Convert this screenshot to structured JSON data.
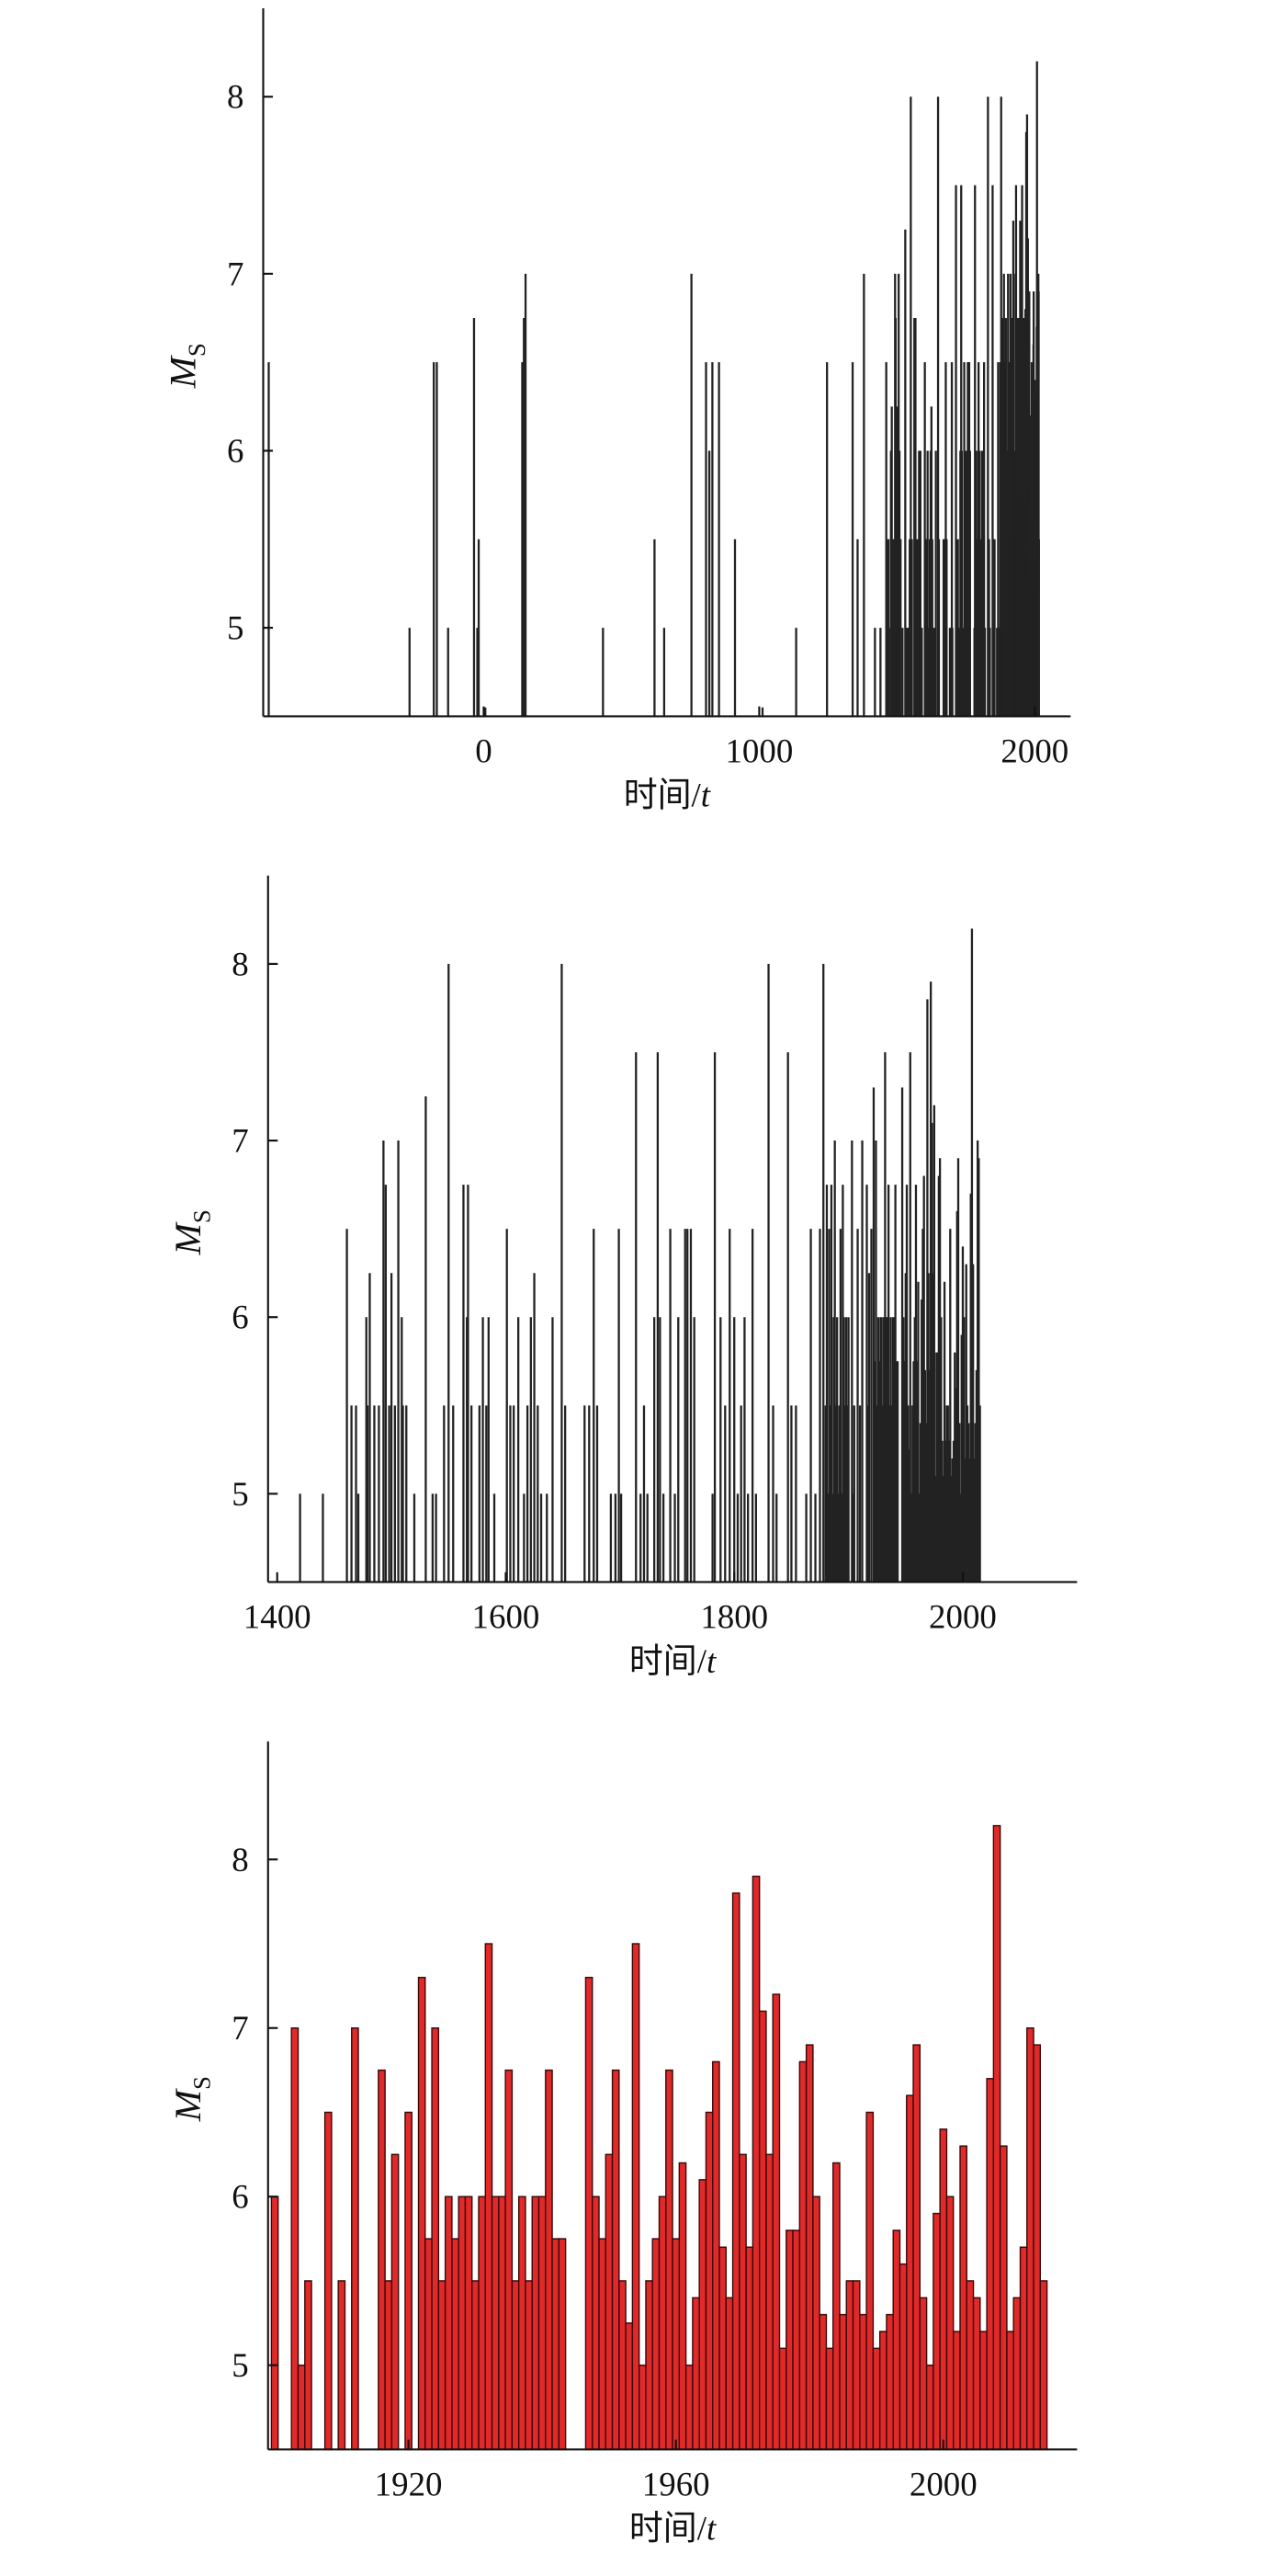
{
  "chart_data": [
    {
      "type": "stem",
      "color": "#222222",
      "x_label": "时间/",
      "x_label_var": "t",
      "y_label": "M",
      "y_label_sub": "S",
      "xlim": [
        -800,
        2130
      ],
      "ylim": [
        4.5,
        8.5
      ],
      "xticks": [
        0,
        1000,
        2000
      ],
      "yticks": [
        5,
        6,
        7,
        8
      ],
      "x": [
        -780,
        -269,
        -181,
        -170,
        -129,
        -35,
        -23,
        -18,
        6,
        140,
        146,
        152,
        433,
        620,
        655,
        754,
        807,
        819,
        830,
        854,
        912,
        1012,
        1134,
        1246,
        1339,
        1357,
        1380,
        1420,
        1440,
        1461,
        1465,
        1469,
        1471,
        1478,
        1479,
        1481,
        1485,
        1489,
        1493,
        1495,
        1498,
        1500,
        1503,
        1506,
        1509,
        1510,
        1513,
        1520,
        1530,
        1536,
        1539,
        1546,
        1550,
        1554,
        1563,
        1566,
        1567,
        1570,
        1577,
        1580,
        1583,
        1585,
        1590,
        1601,
        1604,
        1607,
        1611,
        1616,
        1619,
        1622,
        1625,
        1628,
        1631,
        1636,
        1641,
        1649,
        1652,
        1669,
        1673,
        1677,
        1680,
        1692,
        1696,
        1699,
        1701,
        1714,
        1718,
        1721,
        1724,
        1730,
        1733,
        1735,
        1738,
        1744,
        1748,
        1751,
        1757,
        1759,
        1762,
        1765,
        1781,
        1783,
        1788,
        1792,
        1796,
        1800,
        1803,
        1806,
        1809,
        1812,
        1816,
        1819,
        1830,
        1834,
        1837,
        1847,
        1850,
        1854,
        1863,
        1867,
        1871,
        1875,
        1878,
        1880,
        1881,
        1882,
        1883,
        1884,
        1885,
        1886,
        1887,
        1888,
        1889,
        1890,
        1891,
        1892,
        1893,
        1894,
        1895,
        1896,
        1897,
        1898,
        1899,
        1900,
        1903,
        1904,
        1905,
        1908,
        1910,
        1912,
        1916,
        1917,
        1918,
        1920,
        1922,
        1923,
        1924,
        1925,
        1926,
        1927,
        1928,
        1929,
        1930,
        1931,
        1932,
        1933,
        1934,
        1935,
        1936,
        1937,
        1938,
        1939,
        1940,
        1941,
        1942,
        1943,
        1947,
        1948,
        1949,
        1950,
        1951,
        1952,
        1953,
        1954,
        1955,
        1956,
        1957,
        1958,
        1959,
        1960,
        1961,
        1962,
        1963,
        1964,
        1965,
        1966,
        1967,
        1968,
        1969,
        1970,
        1971,
        1972,
        1973,
        1974,
        1975,
        1976,
        1977,
        1978,
        1979,
        1980,
        1981,
        1982,
        1983,
        1984,
        1985,
        1986,
        1987,
        1988,
        1989,
        1990,
        1991,
        1992,
        1993,
        1994,
        1995,
        1996,
        1997,
        1998,
        1999,
        2000,
        2001,
        2002,
        2003,
        2004,
        2005,
        2006,
        2007,
        2008,
        2009,
        2010,
        2011,
        2012,
        2013,
        2014,
        2015
      ],
      "values": [
        6.5,
        5.0,
        6.5,
        6.5,
        5.0,
        6.75,
        5.0,
        5.5,
        4.55,
        6.5,
        6.75,
        7.0,
        5.0,
        5.5,
        5.0,
        7.0,
        6.5,
        6.0,
        6.5,
        6.5,
        5.5,
        4.55,
        5.0,
        6.5,
        6.5,
        5.5,
        7.0,
        5.0,
        5.0,
        6.5,
        5.5,
        5.5,
        5.0,
        6.0,
        5.5,
        6.25,
        5.5,
        5.5,
        7.0,
        6.75,
        5.5,
        6.25,
        5.5,
        7.0,
        6.0,
        5.5,
        5.5,
        5.0,
        7.25,
        5.0,
        5.0,
        5.5,
        8.0,
        5.5,
        6.75,
        6.0,
        6.75,
        5.5,
        5.5,
        6.0,
        5.5,
        6.0,
        5.0,
        6.5,
        5.5,
        5.5,
        6.0,
        5.0,
        5.5,
        6.0,
        6.25,
        5.5,
        5.0,
        5.0,
        6.0,
        8.0,
        5.5,
        5.5,
        5.5,
        6.5,
        5.5,
        5.0,
        5.0,
        6.5,
        5.0,
        7.5,
        5.0,
        5.5,
        5.0,
        6.0,
        7.5,
        6.0,
        5.0,
        6.5,
        5.0,
        6.0,
        6.5,
        6.5,
        6.5,
        6.0,
        5.0,
        7.5,
        6.0,
        5.5,
        6.5,
        6.0,
        5.0,
        5.5,
        6.0,
        5.0,
        6.5,
        5.0,
        8.0,
        5.5,
        5.0,
        7.5,
        5.5,
        5.5,
        5.0,
        6.5,
        5.0,
        6.5,
        8.0,
        5.5,
        6.75,
        5.0,
        6.5,
        5.5,
        6.75,
        5.0,
        6.0,
        7.0,
        5.5,
        6.0,
        5.0,
        5.5,
        6.5,
        5.0,
        6.75,
        6.0,
        5.5,
        6.0,
        5.5,
        6.0,
        7.0,
        5.0,
        5.5,
        6.5,
        5.5,
        7.0,
        6.75,
        5.5,
        6.25,
        6.5,
        7.3,
        5.75,
        7.0,
        5.5,
        6.0,
        5.75,
        6.0,
        6.0,
        5.5,
        6.0,
        7.5,
        6.0,
        6.0,
        6.75,
        5.5,
        6.0,
        5.5,
        6.0,
        6.0,
        6.75,
        5.75,
        5.75,
        7.3,
        6.0,
        5.75,
        6.25,
        6.75,
        5.5,
        5.25,
        7.5,
        5.0,
        5.5,
        5.75,
        6.0,
        6.75,
        5.75,
        6.2,
        5.0,
        5.4,
        6.1,
        6.5,
        6.8,
        5.7,
        5.4,
        7.8,
        6.25,
        5.7,
        7.9,
        7.1,
        6.25,
        7.2,
        5.1,
        5.8,
        5.8,
        6.8,
        6.9,
        6.0,
        5.3,
        5.1,
        6.2,
        5.3,
        5.5,
        5.5,
        5.3,
        6.5,
        5.1,
        5.2,
        5.3,
        5.8,
        5.6,
        6.6,
        6.9,
        5.4,
        5.0,
        5.9,
        6.4,
        6.0,
        5.2,
        6.3,
        5.5,
        5.4,
        5.2,
        6.7,
        8.2,
        6.3,
        5.2,
        5.4,
        5.7,
        7.0,
        6.9,
        5.5
      ]
    },
    {
      "type": "stem",
      "color": "#222222",
      "x_label": "时间/",
      "x_label_var": "t",
      "y_label": "M",
      "y_label_sub": "S",
      "xlim": [
        1392,
        2100
      ],
      "ylim": [
        4.5,
        8.5
      ],
      "xticks": [
        1400,
        1600,
        1800,
        2000
      ],
      "yticks": [
        5,
        6,
        7,
        8
      ],
      "x": [
        1420,
        1440,
        1461,
        1465,
        1469,
        1471,
        1478,
        1479,
        1481,
        1485,
        1489,
        1493,
        1495,
        1498,
        1500,
        1503,
        1506,
        1509,
        1510,
        1513,
        1520,
        1530,
        1536,
        1539,
        1546,
        1550,
        1554,
        1563,
        1566,
        1567,
        1570,
        1577,
        1580,
        1583,
        1585,
        1590,
        1601,
        1604,
        1607,
        1611,
        1616,
        1619,
        1622,
        1625,
        1628,
        1631,
        1636,
        1641,
        1649,
        1652,
        1669,
        1673,
        1677,
        1680,
        1692,
        1696,
        1699,
        1701,
        1714,
        1718,
        1721,
        1724,
        1730,
        1733,
        1735,
        1738,
        1744,
        1748,
        1751,
        1757,
        1759,
        1762,
        1765,
        1781,
        1783,
        1788,
        1792,
        1796,
        1800,
        1803,
        1806,
        1809,
        1812,
        1816,
        1819,
        1830,
        1834,
        1837,
        1847,
        1850,
        1854,
        1863,
        1867,
        1871,
        1875,
        1878,
        1880,
        1881,
        1882,
        1883,
        1884,
        1885,
        1886,
        1887,
        1888,
        1889,
        1890,
        1891,
        1892,
        1893,
        1894,
        1895,
        1896,
        1897,
        1898,
        1899,
        1900,
        1903,
        1904,
        1905,
        1908,
        1910,
        1912,
        1916,
        1917,
        1918,
        1920,
        1922,
        1923,
        1924,
        1925,
        1926,
        1927,
        1928,
        1929,
        1930,
        1931,
        1932,
        1933,
        1934,
        1935,
        1936,
        1937,
        1938,
        1939,
        1940,
        1941,
        1942,
        1943,
        1947,
        1948,
        1949,
        1950,
        1951,
        1952,
        1953,
        1954,
        1955,
        1956,
        1957,
        1958,
        1959,
        1960,
        1961,
        1962,
        1963,
        1964,
        1965,
        1966,
        1967,
        1968,
        1969,
        1970,
        1971,
        1972,
        1973,
        1974,
        1975,
        1976,
        1977,
        1978,
        1979,
        1980,
        1981,
        1982,
        1983,
        1984,
        1985,
        1986,
        1987,
        1988,
        1989,
        1990,
        1991,
        1992,
        1993,
        1994,
        1995,
        1996,
        1997,
        1998,
        1999,
        2000,
        2001,
        2002,
        2003,
        2004,
        2005,
        2006,
        2007,
        2008,
        2009,
        2010,
        2011,
        2012,
        2013,
        2014,
        2015
      ],
      "values": [
        5.0,
        5.0,
        6.5,
        5.5,
        5.5,
        5.0,
        6.0,
        5.5,
        6.25,
        5.5,
        5.5,
        7.0,
        6.75,
        5.5,
        6.25,
        5.5,
        7.0,
        6.0,
        5.5,
        5.5,
        5.0,
        7.25,
        5.0,
        5.0,
        5.5,
        8.0,
        5.5,
        6.75,
        6.0,
        6.75,
        5.5,
        5.5,
        6.0,
        5.5,
        6.0,
        5.0,
        6.5,
        5.5,
        5.5,
        6.0,
        5.0,
        5.5,
        6.0,
        6.25,
        5.5,
        5.0,
        5.0,
        6.0,
        8.0,
        5.5,
        5.5,
        5.5,
        6.5,
        5.5,
        5.0,
        5.0,
        6.5,
        5.0,
        7.5,
        5.0,
        5.5,
        5.0,
        6.0,
        7.5,
        6.0,
        5.0,
        6.5,
        5.0,
        6.0,
        6.5,
        6.5,
        6.5,
        6.0,
        5.0,
        7.5,
        6.0,
        5.5,
        6.5,
        6.0,
        5.0,
        5.5,
        6.0,
        5.0,
        6.5,
        5.0,
        8.0,
        5.5,
        5.0,
        7.5,
        5.5,
        5.5,
        5.0,
        6.5,
        5.0,
        6.5,
        8.0,
        5.5,
        6.75,
        5.0,
        6.5,
        5.5,
        6.75,
        5.0,
        6.0,
        7.0,
        5.5,
        6.0,
        5.0,
        5.5,
        6.5,
        5.0,
        6.75,
        6.0,
        5.5,
        6.0,
        5.5,
        6.0,
        7.0,
        5.0,
        5.5,
        6.5,
        5.5,
        7.0,
        6.75,
        5.5,
        6.25,
        6.5,
        7.3,
        5.75,
        7.0,
        5.5,
        6.0,
        5.75,
        6.0,
        6.0,
        5.5,
        6.0,
        7.5,
        6.0,
        6.0,
        6.75,
        5.5,
        6.0,
        5.5,
        6.0,
        6.0,
        6.75,
        5.75,
        5.75,
        7.3,
        6.0,
        5.75,
        6.25,
        6.75,
        5.5,
        5.25,
        7.5,
        5.0,
        5.5,
        5.75,
        6.0,
        6.75,
        5.75,
        6.2,
        5.0,
        5.4,
        6.1,
        6.5,
        6.8,
        5.7,
        5.4,
        7.8,
        6.25,
        5.7,
        7.9,
        7.1,
        6.25,
        7.2,
        5.1,
        5.8,
        5.8,
        6.8,
        6.9,
        6.0,
        5.3,
        5.1,
        6.2,
        5.3,
        5.5,
        5.5,
        5.3,
        6.5,
        5.1,
        5.2,
        5.3,
        5.8,
        5.6,
        6.6,
        6.9,
        5.4,
        5.0,
        5.9,
        6.4,
        6.0,
        5.2,
        6.3,
        5.5,
        5.4,
        5.2,
        6.7,
        8.2,
        6.3,
        5.2,
        5.4,
        5.7,
        7.0,
        6.9,
        5.5
      ]
    },
    {
      "type": "bar",
      "color": "#e02a2a",
      "x_label": "时间/",
      "x_label_var": "t",
      "y_label": "M",
      "y_label_sub": "S",
      "xlim": [
        1899,
        2020
      ],
      "ylim": [
        4.5,
        8.7
      ],
      "xticks": [
        1920,
        1960,
        2000
      ],
      "yticks": [
        5,
        6,
        7,
        8
      ],
      "x": [
        1900,
        1903,
        1904,
        1905,
        1908,
        1910,
        1912,
        1916,
        1917,
        1918,
        1920,
        1922,
        1923,
        1924,
        1925,
        1926,
        1927,
        1928,
        1929,
        1930,
        1931,
        1932,
        1933,
        1934,
        1935,
        1936,
        1937,
        1938,
        1939,
        1940,
        1941,
        1942,
        1943,
        1947,
        1948,
        1949,
        1950,
        1951,
        1952,
        1953,
        1954,
        1955,
        1956,
        1957,
        1958,
        1959,
        1960,
        1961,
        1962,
        1963,
        1964,
        1965,
        1966,
        1967,
        1968,
        1969,
        1970,
        1971,
        1972,
        1973,
        1974,
        1975,
        1976,
        1977,
        1978,
        1979,
        1980,
        1981,
        1982,
        1983,
        1984,
        1985,
        1986,
        1987,
        1988,
        1989,
        1990,
        1991,
        1992,
        1993,
        1994,
        1995,
        1996,
        1997,
        1998,
        1999,
        2000,
        2001,
        2002,
        2003,
        2004,
        2005,
        2006,
        2007,
        2008,
        2009,
        2010,
        2011,
        2012,
        2013,
        2014,
        2015
      ],
      "values": [
        6.0,
        7.0,
        5.0,
        5.5,
        6.5,
        5.5,
        7.0,
        6.75,
        5.5,
        6.25,
        6.5,
        7.3,
        5.75,
        7.0,
        5.5,
        6.0,
        5.75,
        6.0,
        6.0,
        5.5,
        6.0,
        7.5,
        6.0,
        6.0,
        6.75,
        5.5,
        6.0,
        5.5,
        6.0,
        6.0,
        6.75,
        5.75,
        5.75,
        7.3,
        6.0,
        5.75,
        6.25,
        6.75,
        5.5,
        5.25,
        7.5,
        5.0,
        5.5,
        5.75,
        6.0,
        6.75,
        5.75,
        6.2,
        5.0,
        5.4,
        6.1,
        6.5,
        6.8,
        5.7,
        5.4,
        7.8,
        6.25,
        5.7,
        7.9,
        7.1,
        6.25,
        7.2,
        5.1,
        5.8,
        5.8,
        6.8,
        6.9,
        6.0,
        5.3,
        5.1,
        6.2,
        5.3,
        5.5,
        5.5,
        5.3,
        6.5,
        5.1,
        5.2,
        5.3,
        5.8,
        5.6,
        6.6,
        6.9,
        5.4,
        5.0,
        5.9,
        6.4,
        6.0,
        5.2,
        6.3,
        5.5,
        5.4,
        5.2,
        6.7,
        8.2,
        6.3,
        5.2,
        5.4,
        5.7,
        7.0,
        6.9,
        5.5
      ]
    }
  ]
}
